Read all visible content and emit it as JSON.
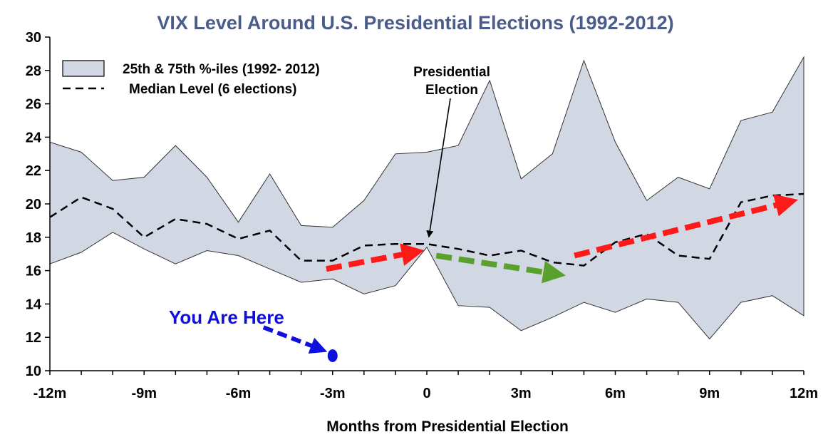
{
  "chart_data": {
    "type": "area",
    "title": "VIX Level Around U.S. Presidential Elections (1992-2012)",
    "xlabel": "Months from Presidential Election",
    "ylabel": "",
    "xlim": [
      -12,
      12
    ],
    "ylim": [
      10,
      30
    ],
    "x_ticks": [
      -12,
      -9,
      -6,
      -3,
      0,
      3,
      6,
      9,
      12
    ],
    "x_tick_labels": [
      "-12m",
      "-9m",
      "-6m",
      "-3m",
      "0",
      "3m",
      "6m",
      "9m",
      "12m"
    ],
    "y_ticks": [
      10,
      12,
      14,
      16,
      18,
      20,
      22,
      24,
      26,
      28,
      30
    ],
    "x": [
      -12,
      -11,
      -10,
      -9,
      -8,
      -7,
      -6,
      -5,
      -4,
      -3,
      -2,
      -1,
      0,
      1,
      2,
      3,
      4,
      5,
      6,
      7,
      8,
      9,
      10,
      11,
      12
    ],
    "series": [
      {
        "name": "25th & 75th %-iles (1992- 2012)",
        "kind": "band",
        "upper": [
          23.7,
          23.1,
          21.4,
          21.6,
          23.5,
          21.6,
          18.9,
          21.8,
          18.7,
          18.6,
          20.2,
          23.0,
          23.1,
          23.5,
          27.4,
          21.5,
          23.0,
          28.6,
          23.7,
          20.2,
          21.6,
          20.9,
          25.0,
          25.5,
          28.8
        ],
        "lower": [
          16.4,
          17.1,
          18.3,
          17.3,
          16.4,
          17.2,
          16.9,
          16.1,
          15.3,
          15.5,
          14.6,
          15.1,
          17.4,
          13.9,
          13.8,
          12.4,
          13.2,
          14.1,
          13.5,
          14.3,
          14.1,
          11.9,
          14.1,
          14.5,
          13.3
        ],
        "color": "#d2d7e4"
      },
      {
        "name": "Median Level (6 elections)",
        "kind": "dashed-line",
        "values": [
          19.2,
          20.4,
          19.7,
          18.0,
          19.1,
          18.8,
          17.9,
          18.4,
          16.6,
          16.6,
          17.5,
          17.6,
          17.6,
          17.3,
          16.9,
          17.2,
          16.5,
          16.3,
          17.7,
          18.2,
          16.9,
          16.7,
          20.1,
          20.5,
          20.6
        ],
        "color": "#000000"
      }
    ],
    "legend": [
      "25th & 75th %-iles (1992- 2012)",
      "Median Level (6 elections)"
    ],
    "legend_position": "top-left",
    "annotations": {
      "election_label_line1": "Presidential",
      "election_label_line2": "Election",
      "you_are_here": "You Are Here",
      "you_are_here_point": {
        "x": -3,
        "y": 10.9
      },
      "election_arrow_target": {
        "x": 0,
        "y": 17.8
      },
      "trend_arrows": [
        {
          "color": "#ff1a1a",
          "from": {
            "x": -3.2,
            "y": 16.1
          },
          "to": {
            "x": -0.4,
            "y": 17.1
          }
        },
        {
          "color": "#5aa02c",
          "from": {
            "x": 0.3,
            "y": 16.9
          },
          "to": {
            "x": 4.1,
            "y": 15.8
          }
        },
        {
          "color": "#ff1a1a",
          "from": {
            "x": 4.7,
            "y": 16.9
          },
          "to": {
            "x": 11.5,
            "y": 20.1
          }
        }
      ],
      "here_arrow": {
        "color": "#1010dd",
        "from": {
          "x": -5.2,
          "y": 12.6
        },
        "to": {
          "x": -3.4,
          "y": 11.3
        }
      }
    }
  }
}
